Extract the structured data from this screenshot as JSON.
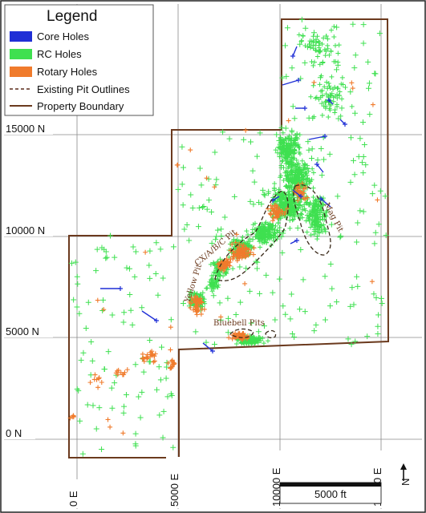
{
  "legend": {
    "title": "Legend",
    "items": [
      {
        "label": "Core Holes",
        "kind": "swatch",
        "color": "#1f2fd6"
      },
      {
        "label": "RC Holes",
        "kind": "swatch",
        "color": "#3fe050"
      },
      {
        "label": "Rotary Holes",
        "kind": "swatch",
        "color": "#f07b2c"
      },
      {
        "label": "Existing Pit Outlines",
        "kind": "dashed",
        "color": "#5a2a1a"
      },
      {
        "label": "Property Boundary",
        "kind": "line",
        "color": "#6b3a1e"
      }
    ]
  },
  "axes": {
    "y_ticks": [
      "15000 N",
      "10000 N",
      "5000 N",
      "0 N"
    ],
    "x_ticks": [
      "0 E",
      "5000 E",
      "10000 E",
      "15000 E"
    ]
  },
  "pits": [
    {
      "label": "CX/A/B/C Pit"
    },
    {
      "label": "Mag Pit"
    },
    {
      "label": "Bluebell Pits"
    },
    {
      "label": "Yellow Pit"
    }
  ],
  "scale_bar": {
    "label": "5000 ft"
  },
  "north_arrow": {
    "label": "N"
  },
  "colors": {
    "core": "#1f2fd6",
    "rc": "#3fe050",
    "rotary": "#f07b2c",
    "boundary": "#6b3a1e",
    "pit": "#3a2a1a",
    "grid": "#8a8a8a"
  }
}
